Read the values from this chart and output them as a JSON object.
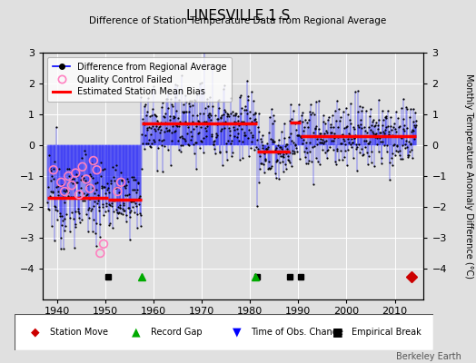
{
  "title": "LINESVILLE 1 S",
  "subtitle": "Difference of Station Temperature Data from Regional Average",
  "ylabel": "Monthly Temperature Anomaly Difference (°C)",
  "xlim": [
    1937,
    2016
  ],
  "ylim": [
    -5,
    3
  ],
  "yticks_left": [
    -4,
    -3,
    -2,
    -1,
    0,
    1,
    2,
    3
  ],
  "yticks_right": [
    -4,
    -3,
    -2,
    -1,
    0,
    1,
    2,
    3
  ],
  "xticks": [
    1940,
    1950,
    1960,
    1970,
    1980,
    1990,
    2000,
    2010
  ],
  "bg_color": "#e0e0e0",
  "grid_color": "#ffffff",
  "watermark": "Berkeley Earth",
  "segments": [
    {
      "start": 1938.0,
      "end": 1950.5,
      "bias": -1.7
    },
    {
      "start": 1950.5,
      "end": 1957.5,
      "bias": -1.75
    },
    {
      "start": 1957.5,
      "end": 1981.5,
      "bias": 0.7
    },
    {
      "start": 1981.5,
      "end": 1988.2,
      "bias": -0.2
    },
    {
      "start": 1988.2,
      "end": 1990.5,
      "bias": 0.75
    },
    {
      "start": 1990.5,
      "end": 2014.5,
      "bias": 0.3
    }
  ],
  "data_segments": [
    {
      "start": 1938,
      "end": 1950.4,
      "bias": -1.7,
      "noise": 0.7
    },
    {
      "start": 1950.4,
      "end": 1957.4,
      "bias": -1.75,
      "noise": 0.5
    },
    {
      "start": 1957.4,
      "end": 1981.4,
      "bias": 0.7,
      "noise": 0.6
    },
    {
      "start": 1981.4,
      "end": 1988.2,
      "bias": -0.2,
      "noise": 0.6
    },
    {
      "start": 1988.2,
      "end": 2014.5,
      "bias": 0.3,
      "noise": 0.55
    }
  ],
  "station_moves": [
    2013.5
  ],
  "record_gaps": [
    1957.5,
    1981.0
  ],
  "tobs_changes": [],
  "empirical_breaks": [
    1950.5,
    1981.5,
    1988.2,
    1990.5
  ],
  "qc_failed_x": [
    1939.2,
    1940.8,
    1941.5,
    1942.3,
    1943.0,
    1943.8,
    1944.5,
    1945.2,
    1946.0,
    1946.8,
    1947.5,
    1948.2,
    1948.9,
    1949.6,
    1952.5,
    1953.2
  ],
  "qc_failed_y": [
    -0.8,
    -1.2,
    -1.5,
    -1.0,
    -1.3,
    -0.9,
    -1.6,
    -0.7,
    -1.1,
    -1.4,
    -0.5,
    -0.8,
    -3.5,
    -3.2,
    -1.5,
    -1.2
  ]
}
